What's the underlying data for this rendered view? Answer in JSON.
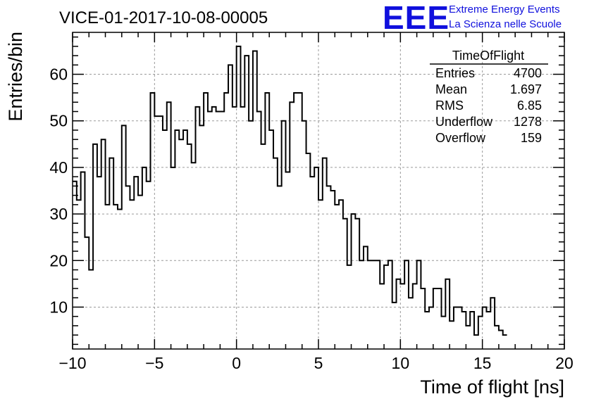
{
  "header": {
    "run_title": "VICE-01-2017-10-08-00005"
  },
  "logo": {
    "mark": "EEE",
    "line1": "Extreme Energy Events",
    "line2": "La Scienza nelle Scuole",
    "color": "#1010dd"
  },
  "stats": {
    "title": "TimeOfFlight",
    "rows": [
      {
        "label": "Entries",
        "value": "4700"
      },
      {
        "label": "Mean",
        "value": "1.697"
      },
      {
        "label": "RMS",
        "value": "6.85"
      },
      {
        "label": "Underflow",
        "value": "1278"
      },
      {
        "label": "Overflow",
        "value": "159"
      }
    ]
  },
  "chart_data": {
    "type": "histogram",
    "title": "VICE-01-2017-10-08-00005",
    "xlabel": "Time of flight [ns]",
    "ylabel": "Entries/bin",
    "xlim": [
      -10,
      20
    ],
    "ylim": [
      1,
      69
    ],
    "grid": true,
    "bin_width": 0.25,
    "xticks": [
      -10,
      -5,
      0,
      5,
      10,
      15,
      20
    ],
    "xtick_labels": [
      "−10",
      "−5",
      "0",
      "5",
      "10",
      "15",
      "20"
    ],
    "yticks": [
      10,
      20,
      30,
      40,
      50,
      60
    ],
    "ytick_labels": [
      "10",
      "20",
      "30",
      "40",
      "50",
      "60"
    ],
    "line_color": "#000000",
    "values": [
      37,
      33,
      39,
      25,
      18,
      45,
      38,
      46,
      32,
      42,
      32,
      31,
      49,
      36,
      33,
      38,
      34,
      40,
      37,
      56,
      51,
      51,
      48,
      54,
      40,
      48,
      46,
      48,
      45,
      41,
      53,
      49,
      56,
      52,
      53,
      52,
      52,
      56,
      62,
      53,
      66,
      53,
      64,
      50,
      65,
      52,
      45,
      56,
      48,
      42,
      36,
      50,
      39,
      54,
      56,
      56,
      50,
      43,
      38,
      40,
      33,
      42,
      36,
      35,
      32,
      33,
      29,
      19,
      30,
      29,
      20,
      23,
      20,
      20,
      20,
      15,
      19,
      20,
      11,
      16,
      15,
      20,
      12,
      15,
      20,
      14,
      9,
      10,
      14,
      14,
      8,
      16,
      7,
      10,
      10,
      9,
      6,
      9,
      4,
      8,
      10,
      9,
      12,
      6,
      5,
      4
    ]
  }
}
